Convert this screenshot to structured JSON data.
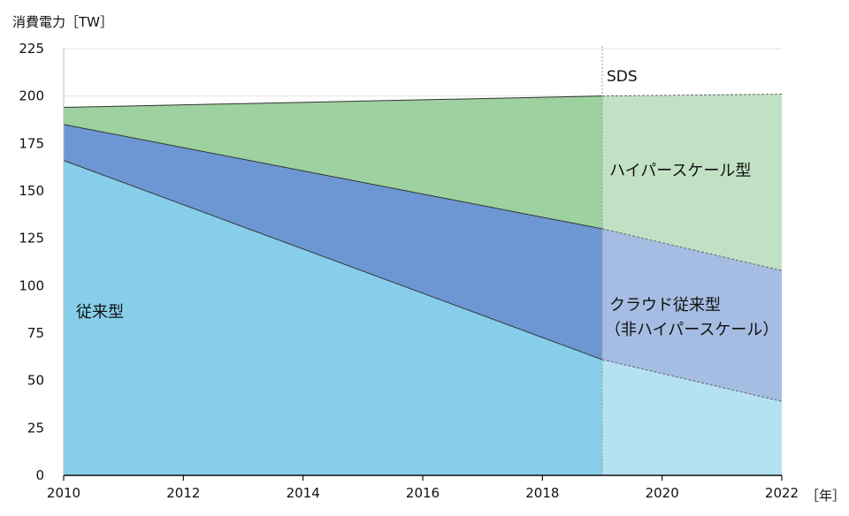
{
  "chart_data": {
    "type": "area",
    "ylabel": "消費電力［TW］",
    "xlabel": "［年］",
    "xlim": [
      2010,
      2022
    ],
    "ylim": [
      0,
      225
    ],
    "xticks": [
      "2010",
      "2012",
      "2014",
      "2016",
      "2018",
      "2020",
      "2022"
    ],
    "yticks": [
      "0",
      "25",
      "50",
      "75",
      "100",
      "125",
      "150",
      "175",
      "200",
      "225"
    ],
    "grid": true,
    "x": [
      2010,
      2019,
      2022
    ],
    "projection_start": 2019,
    "projection_label": "SDS",
    "series": [
      {
        "name": "従来型",
        "values": [
          166,
          61,
          39
        ],
        "color": "#86ceea",
        "projection_color": "#b4e2f3"
      },
      {
        "name_lines": [
          "クラウド従来型",
          "（非ハイパースケール）"
        ],
        "values": [
          19,
          69,
          69
        ],
        "color": "#6c97d2",
        "projection_color": "#a6bde3"
      },
      {
        "name": "ハイパースケール型",
        "values": [
          9,
          70,
          93
        ],
        "color": "#9dd19f",
        "projection_color": "#c1e1c4"
      }
    ]
  }
}
